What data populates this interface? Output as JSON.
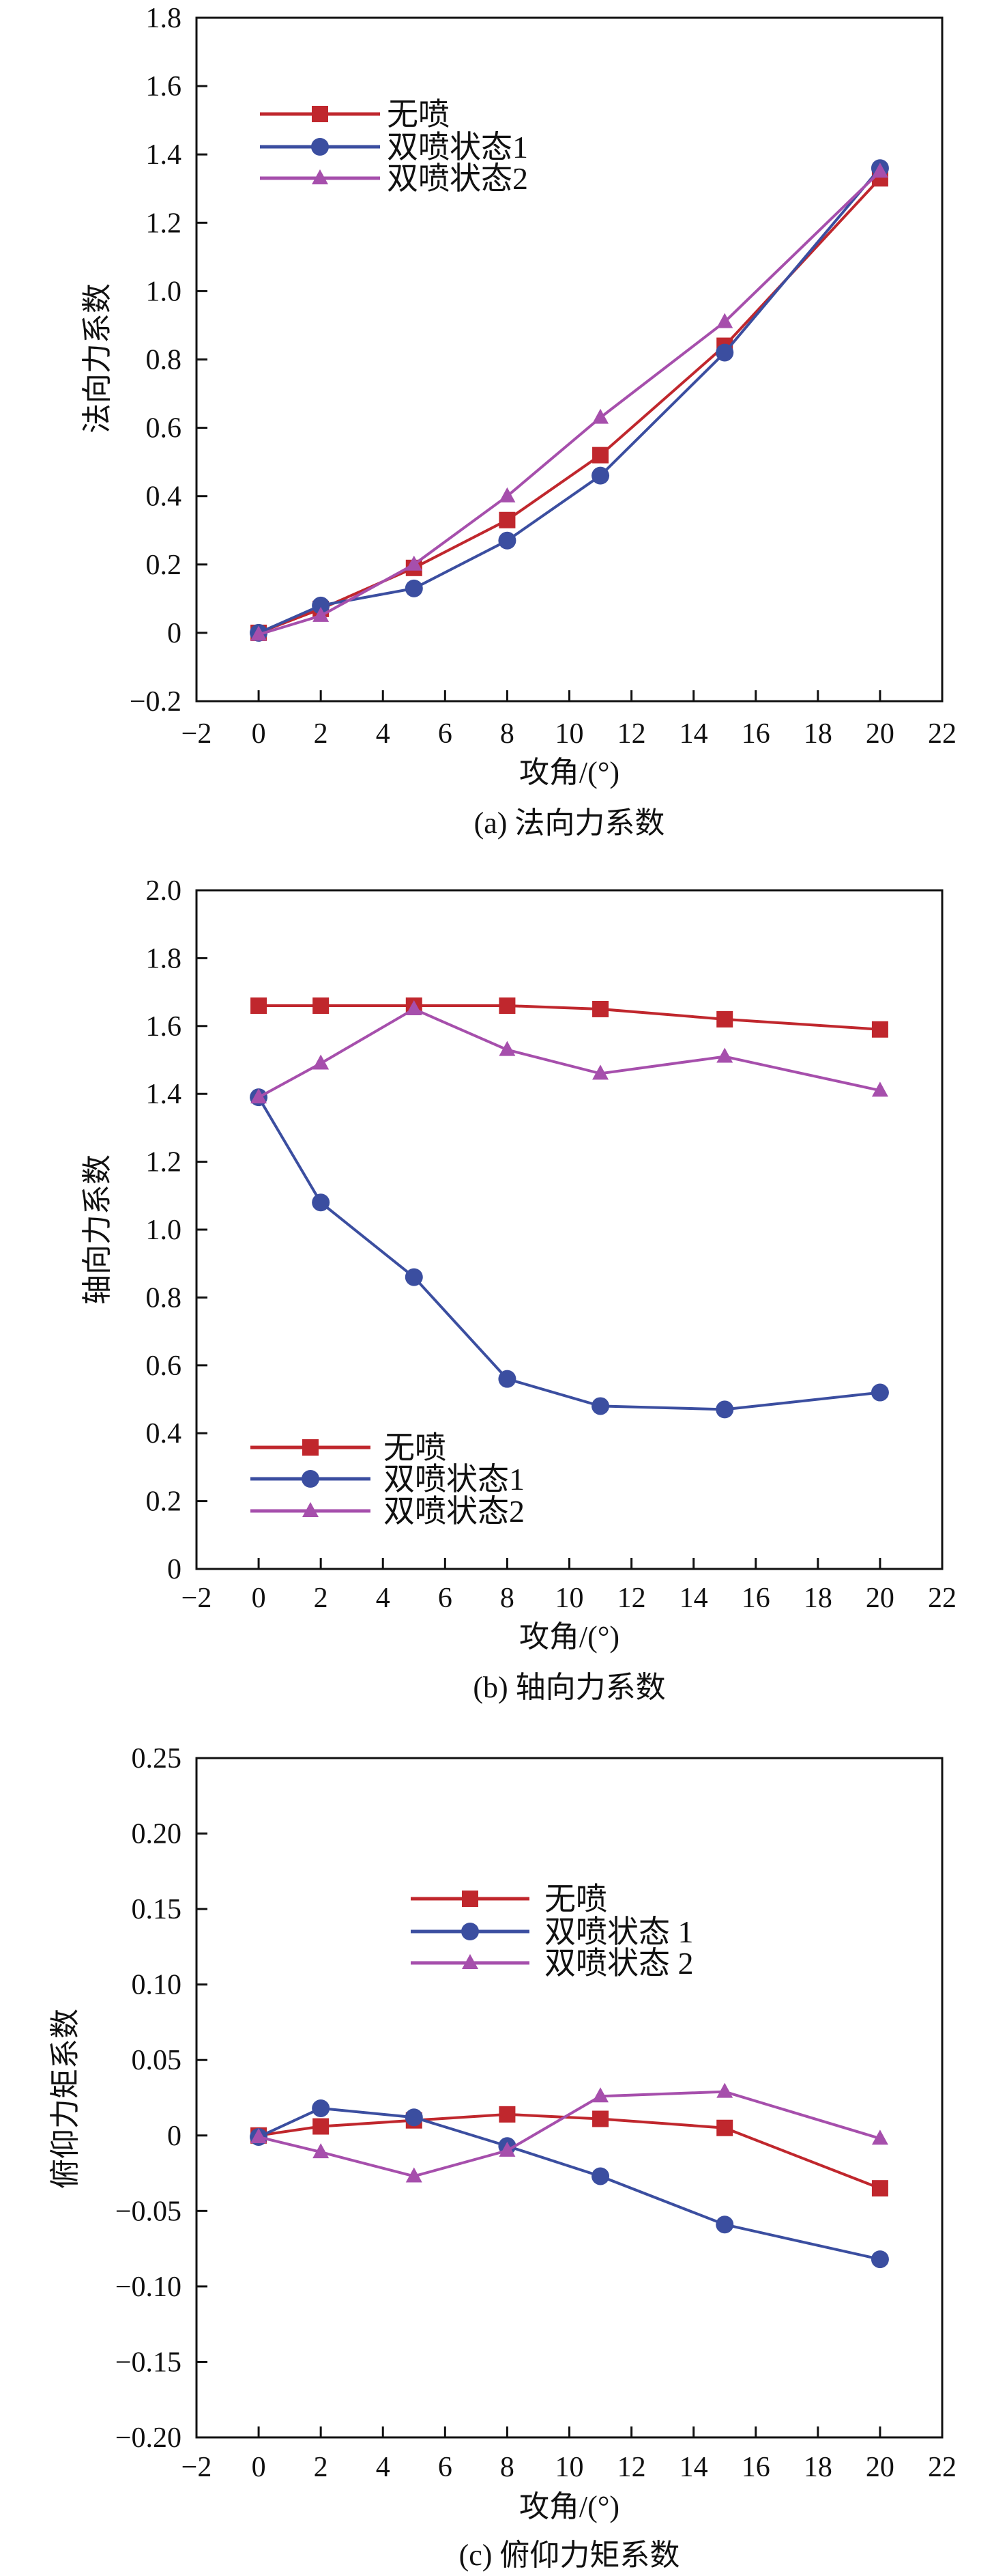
{
  "colors": {
    "no_jet": "#c0272d",
    "state1": "#3b4ea0",
    "state2": "#a64fac"
  },
  "chart_data": [
    {
      "type": "line",
      "caption": "(a) 法向力系数",
      "xlabel": "攻角/(°)",
      "ylabel": "法向力系数",
      "xlim": [
        -2,
        22
      ],
      "ylim": [
        -0.2,
        1.8
      ],
      "xticks": [
        -2,
        0,
        2,
        4,
        6,
        8,
        10,
        12,
        14,
        16,
        18,
        20,
        22
      ],
      "yticks": [
        -0.2,
        0,
        0.2,
        0.4,
        0.6,
        0.8,
        1.0,
        1.2,
        1.4,
        1.6,
        1.8
      ],
      "ytick_labels": [
        "−0.2",
        "0",
        "0.2",
        "0.4",
        "0.6",
        "0.8",
        "1.0",
        "1.2",
        "1.4",
        "1.6",
        "1.8"
      ],
      "legend_position": "top-left",
      "x": [
        0,
        2,
        5,
        8,
        11,
        15,
        20
      ],
      "series": [
        {
          "name": "无喷",
          "marker": "square",
          "values": [
            0,
            0.07,
            0.19,
            0.33,
            0.52,
            0.84,
            1.33
          ]
        },
        {
          "name": "双喷状态1",
          "marker": "circle",
          "values": [
            0,
            0.08,
            0.13,
            0.27,
            0.46,
            0.82,
            1.36
          ]
        },
        {
          "name": "双喷状态2",
          "marker": "triangle",
          "values": [
            -0.005,
            0.05,
            0.2,
            0.4,
            0.63,
            0.91,
            1.35
          ]
        }
      ]
    },
    {
      "type": "line",
      "caption": "(b) 轴向力系数",
      "xlabel": "攻角/(°)",
      "ylabel": "轴向力系数",
      "xlim": [
        -2,
        22
      ],
      "ylim": [
        0,
        2.0
      ],
      "xticks": [
        -2,
        0,
        2,
        4,
        6,
        8,
        10,
        12,
        14,
        16,
        18,
        20,
        22
      ],
      "yticks": [
        0,
        0.2,
        0.4,
        0.6,
        0.8,
        1.0,
        1.2,
        1.4,
        1.6,
        1.8,
        2.0
      ],
      "ytick_labels": [
        "0",
        "0.2",
        "0.4",
        "0.6",
        "0.8",
        "1.0",
        "1.2",
        "1.4",
        "1.6",
        "1.8",
        "2.0"
      ],
      "legend_position": "bottom-left",
      "x": [
        0,
        2,
        5,
        8,
        11,
        15,
        20
      ],
      "series": [
        {
          "name": "无喷",
          "marker": "square",
          "values": [
            1.66,
            1.66,
            1.66,
            1.66,
            1.65,
            1.62,
            1.59
          ]
        },
        {
          "name": "双喷状态1",
          "marker": "circle",
          "values": [
            1.39,
            1.08,
            0.86,
            0.56,
            0.48,
            0.47,
            0.52
          ]
        },
        {
          "name": "双喷状态2",
          "marker": "triangle",
          "values": [
            1.39,
            1.49,
            1.65,
            1.53,
            1.46,
            1.51,
            1.41
          ]
        }
      ]
    },
    {
      "type": "line",
      "caption": "(c) 俯仰力矩系数",
      "xlabel": "攻角/(°)",
      "ylabel": "俯仰力矩系数",
      "xlim": [
        -2,
        22
      ],
      "ylim": [
        -0.2,
        0.25
      ],
      "xticks": [
        -2,
        0,
        2,
        4,
        6,
        8,
        10,
        12,
        14,
        16,
        18,
        20,
        22
      ],
      "yticks": [
        -0.2,
        -0.15,
        -0.1,
        -0.05,
        0,
        0.05,
        0.1,
        0.15,
        0.2,
        0.25
      ],
      "ytick_labels": [
        "−0.20",
        "−0.15",
        "−0.10",
        "−0.05",
        "0",
        "0.05",
        "0.10",
        "0.15",
        "0.20",
        "0.25"
      ],
      "legend_position": "top-center",
      "x": [
        0,
        2,
        5,
        8,
        11,
        15,
        20
      ],
      "series": [
        {
          "name": "无喷",
          "marker": "square",
          "values": [
            0,
            0.006,
            0.01,
            0.014,
            0.011,
            0.005,
            -0.035
          ]
        },
        {
          "name": "双喷状态 1",
          "marker": "circle",
          "values": [
            -0.001,
            0.018,
            0.012,
            -0.007,
            -0.027,
            -0.059,
            -0.082
          ]
        },
        {
          "name": "双喷状态 2",
          "marker": "triangle",
          "values": [
            -0.001,
            -0.011,
            -0.027,
            -0.01,
            0.026,
            0.029,
            -0.002
          ]
        }
      ]
    }
  ]
}
